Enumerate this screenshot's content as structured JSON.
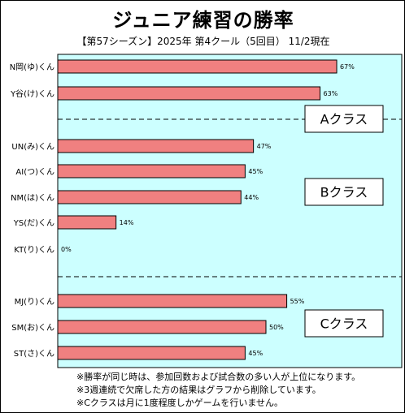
{
  "title": "ジュニア練習の勝率",
  "subtitle": "【第57シーズン】2025年 第4クール（5回目） 11/2現在",
  "chart_data": {
    "type": "bar",
    "orientation": "horizontal",
    "title": "ジュニア練習の勝率",
    "categories": [
      "N岡(ゆ)くん",
      "Y谷(け)くん",
      "UN(み)くん",
      "AI(つ)くん",
      "NM(は)くん",
      "YS(だ)くん",
      "KT(り)くん",
      "MJ(り)くん",
      "SM(お)くん",
      "ST(さ)くん"
    ],
    "values": [
      67,
      63,
      47,
      45,
      44,
      14,
      0,
      55,
      50,
      45
    ],
    "value_labels": [
      "67%",
      "63%",
      "47%",
      "45%",
      "44%",
      "14%",
      "0%",
      "55%",
      "50%",
      "45%"
    ],
    "xlim": [
      0,
      100
    ],
    "grid": false,
    "bar_color": "#f08080",
    "plot_background": "#ccffff",
    "groups": [
      {
        "label": "Aクラス",
        "start": 0,
        "count": 2
      },
      {
        "label": "Bクラス",
        "start": 2,
        "count": 5
      },
      {
        "label": "Cクラス",
        "start": 7,
        "count": 3
      }
    ]
  },
  "notes": [
    "※勝率が同じ時は、参加回数および試合数の多い人が上位になります。",
    "※3週連続で欠席した方の結果はグラフから削除しています。",
    "※Cクラスは月に1度程度しかゲームを行いません。"
  ]
}
